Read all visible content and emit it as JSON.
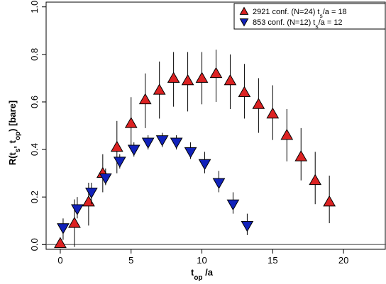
{
  "chart_data": {
    "type": "scatter",
    "title": "",
    "xlabel": {
      "main": "t",
      "sub": "op",
      "suffix": " /a"
    },
    "ylabel": {
      "parts": [
        {
          "t": "R(",
          "sub": false
        },
        {
          "t": "t",
          "sub": false
        },
        {
          "t": "s",
          "sub": true
        },
        {
          "t": ", t",
          "sub": false
        },
        {
          "t": "op",
          "sub": true
        },
        {
          "t": ")  [bare]",
          "sub": false
        }
      ]
    },
    "xlim": [
      -1,
      23
    ],
    "ylim": [
      -0.02,
      1.02
    ],
    "xticks": [
      "0",
      "5",
      "10",
      "15",
      "20"
    ],
    "yticks": [
      "0.0",
      "0.2",
      "0.4",
      "0.6",
      "0.8",
      "1.0"
    ],
    "hline": 0,
    "legend_position": "top-right",
    "series": [
      {
        "name": "2921 conf. (N=24) t_s/a = 18",
        "legend": [
          {
            "t": "2921 conf. (N=24) t",
            "sub": false
          },
          {
            "t": "s",
            "sub": true
          },
          {
            "t": "/a = 18",
            "sub": false
          }
        ],
        "marker": "triangle-up",
        "color": "#dd2222",
        "points": [
          {
            "x": 0,
            "y": 0.005,
            "lo": -0.005,
            "hi": 0.02
          },
          {
            "x": 1,
            "y": 0.09,
            "lo": -0.01,
            "hi": 0.19
          },
          {
            "x": 2,
            "y": 0.18,
            "lo": 0.08,
            "hi": 0.26
          },
          {
            "x": 3,
            "y": 0.3,
            "lo": 0.22,
            "hi": 0.38
          },
          {
            "x": 4,
            "y": 0.41,
            "lo": 0.3,
            "hi": 0.52
          },
          {
            "x": 5,
            "y": 0.51,
            "lo": 0.4,
            "hi": 0.62
          },
          {
            "x": 6,
            "y": 0.61,
            "lo": 0.49,
            "hi": 0.72
          },
          {
            "x": 7,
            "y": 0.65,
            "lo": 0.53,
            "hi": 0.77
          },
          {
            "x": 8,
            "y": 0.7,
            "lo": 0.58,
            "hi": 0.81
          },
          {
            "x": 9,
            "y": 0.69,
            "lo": 0.56,
            "hi": 0.81
          },
          {
            "x": 10,
            "y": 0.7,
            "lo": 0.59,
            "hi": 0.81
          },
          {
            "x": 11,
            "y": 0.72,
            "lo": 0.6,
            "hi": 0.82
          },
          {
            "x": 12,
            "y": 0.69,
            "lo": 0.57,
            "hi": 0.8
          },
          {
            "x": 13,
            "y": 0.64,
            "lo": 0.53,
            "hi": 0.76
          },
          {
            "x": 14,
            "y": 0.59,
            "lo": 0.47,
            "hi": 0.7
          },
          {
            "x": 15,
            "y": 0.55,
            "lo": 0.44,
            "hi": 0.67
          },
          {
            "x": 16,
            "y": 0.46,
            "lo": 0.35,
            "hi": 0.57
          },
          {
            "x": 17,
            "y": 0.37,
            "lo": 0.27,
            "hi": 0.49
          },
          {
            "x": 18,
            "y": 0.27,
            "lo": 0.17,
            "hi": 0.39
          },
          {
            "x": 19,
            "y": 0.18,
            "lo": 0.09,
            "hi": 0.29
          }
        ]
      },
      {
        "name": "853 conf. (N=12) t_s/a = 12",
        "legend": [
          {
            "t": "853   conf. (N=12) t",
            "sub": false
          },
          {
            "t": "s",
            "sub": true
          },
          {
            "t": "/a = 12",
            "sub": false
          }
        ],
        "marker": "triangle-down",
        "color": "#1122bb",
        "points": [
          {
            "x": 0.2,
            "y": 0.07,
            "lo": 0.02,
            "hi": 0.11
          },
          {
            "x": 1.2,
            "y": 0.15,
            "lo": 0.11,
            "hi": 0.2
          },
          {
            "x": 2.2,
            "y": 0.22,
            "lo": 0.17,
            "hi": 0.26
          },
          {
            "x": 3.2,
            "y": 0.28,
            "lo": 0.25,
            "hi": 0.32
          },
          {
            "x": 4.2,
            "y": 0.35,
            "lo": 0.32,
            "hi": 0.38
          },
          {
            "x": 5.2,
            "y": 0.4,
            "lo": 0.37,
            "hi": 0.43
          },
          {
            "x": 6.2,
            "y": 0.43,
            "lo": 0.4,
            "hi": 0.46
          },
          {
            "x": 7.2,
            "y": 0.44,
            "lo": 0.41,
            "hi": 0.47
          },
          {
            "x": 8.2,
            "y": 0.43,
            "lo": 0.4,
            "hi": 0.46
          },
          {
            "x": 9.2,
            "y": 0.39,
            "lo": 0.36,
            "hi": 0.43
          },
          {
            "x": 10.2,
            "y": 0.34,
            "lo": 0.3,
            "hi": 0.39
          },
          {
            "x": 11.2,
            "y": 0.26,
            "lo": 0.22,
            "hi": 0.31
          },
          {
            "x": 12.2,
            "y": 0.17,
            "lo": 0.13,
            "hi": 0.22
          },
          {
            "x": 13.2,
            "y": 0.08,
            "lo": 0.04,
            "hi": 0.13
          }
        ]
      }
    ]
  }
}
